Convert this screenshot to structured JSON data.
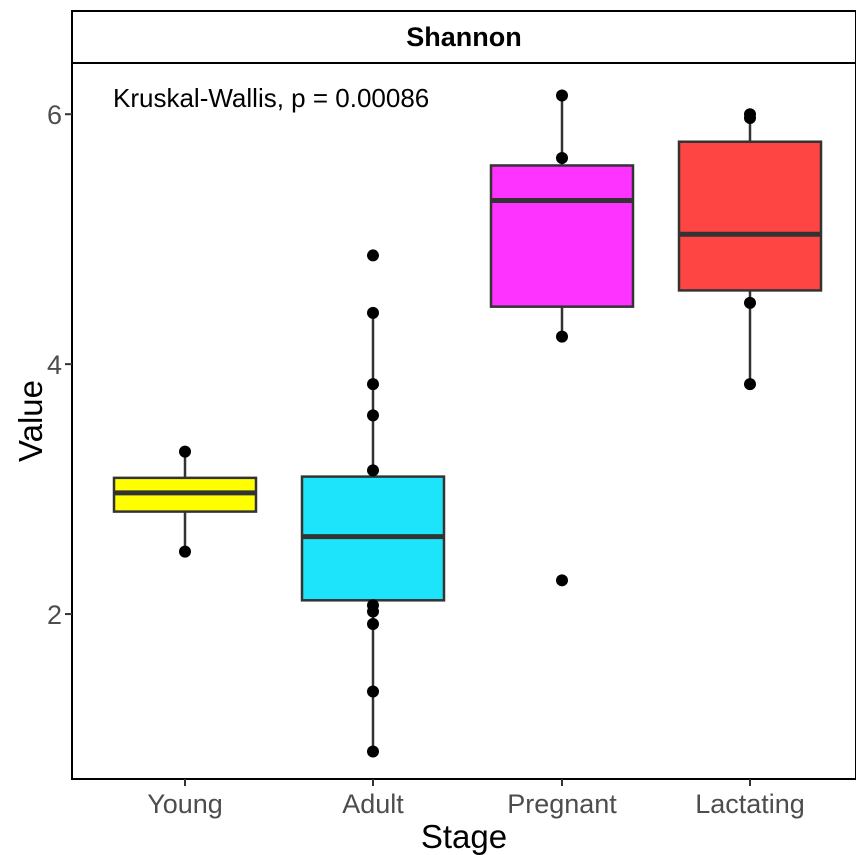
{
  "chart_data": {
    "type": "box",
    "facet_title": "Shannon",
    "annotation": "Kruskal-Wallis, p = 0.00086",
    "xlabel": "Stage",
    "ylabel": "Value",
    "categories": [
      "Young",
      "Adult",
      "Pregnant",
      "Lactating"
    ],
    "yticks": [
      2,
      4,
      6
    ],
    "ylim": [
      0.68,
      6.41
    ],
    "grid": false,
    "legend": "none",
    "boxes": [
      {
        "category": "Young",
        "color": "#FFFF00",
        "q1": 2.82,
        "median": 2.97,
        "q3": 3.09,
        "whisker_low": 2.5,
        "whisker_high": 3.3,
        "points": [
          3.3,
          2.5
        ]
      },
      {
        "category": "Adult",
        "color": "#1DE4FA",
        "q1": 2.11,
        "median": 2.62,
        "q3": 3.1,
        "whisker_low": 0.9,
        "whisker_high": 4.41,
        "points": [
          4.87,
          4.41,
          3.84,
          3.59,
          3.15,
          2.07,
          2.02,
          1.92,
          1.38,
          0.9
        ]
      },
      {
        "category": "Pregnant",
        "color": "#FF33FF",
        "q1": 4.46,
        "median": 5.31,
        "q3": 5.59,
        "whisker_low": 4.22,
        "whisker_high": 6.15,
        "points": [
          6.15,
          5.65,
          4.22,
          2.27
        ]
      },
      {
        "category": "Lactating",
        "color": "#FF4444",
        "q1": 4.59,
        "median": 5.04,
        "q3": 5.78,
        "whisker_low": 3.84,
        "whisker_high": 6.0,
        "points": [
          6.0,
          5.97,
          4.49,
          3.84
        ]
      }
    ]
  }
}
